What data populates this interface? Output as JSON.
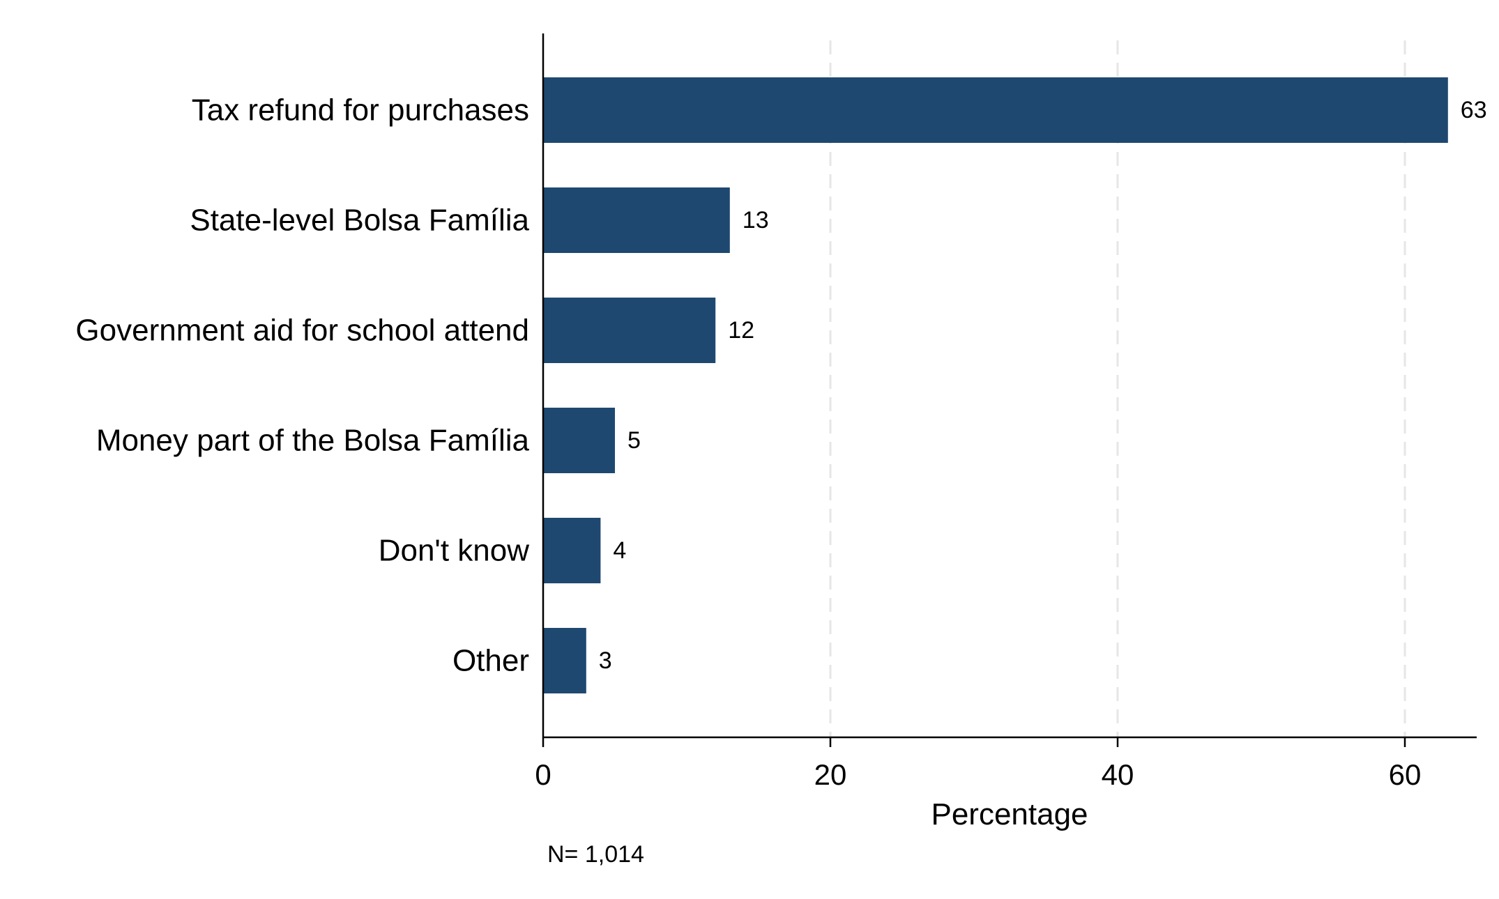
{
  "chart_data": {
    "type": "bar",
    "orientation": "horizontal",
    "categories": [
      "Tax refund for purchases",
      "State-level Bolsa Família",
      "Government aid for school attend",
      "Money part of the Bolsa Família",
      "Don't know",
      "Other"
    ],
    "values": [
      63,
      13,
      12,
      5,
      4,
      3
    ],
    "value_labels": [
      "63",
      "13",
      "12",
      "5",
      "4",
      "3"
    ],
    "xlabel": "Percentage",
    "ylabel": "",
    "xlim": [
      0,
      65
    ],
    "xticks": [
      0,
      20,
      40,
      60
    ],
    "xtick_labels": [
      "0",
      "20",
      "40",
      "60"
    ],
    "grid": "vertical dashed at major ticks",
    "bar_color": "#1e4870",
    "grid_color": "#e6e6e6",
    "note": "N= 1,014"
  }
}
